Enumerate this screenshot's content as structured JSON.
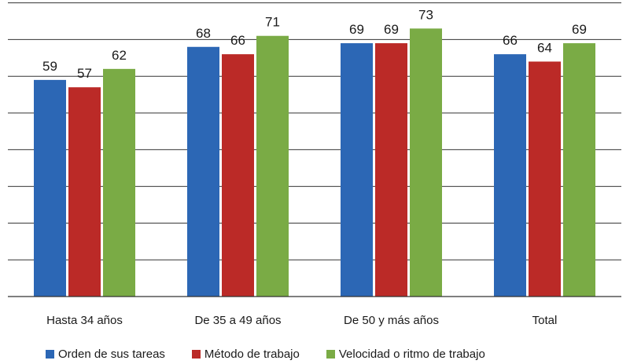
{
  "chart_data": {
    "type": "bar",
    "title": "",
    "xlabel": "",
    "ylabel": "",
    "categories": [
      "Hasta 34 años",
      "De 35 a 49 años",
      "De 50 y más años",
      "Total"
    ],
    "series": [
      {
        "name": "Orden de sus tareas",
        "values": [
          59,
          68,
          69,
          66
        ],
        "color": "#2c67b5"
      },
      {
        "name": "Método de trabajo",
        "values": [
          57,
          66,
          69,
          64
        ],
        "color": "#bb2a27"
      },
      {
        "name": "Velocidad o ritmo de trabajo",
        "values": [
          62,
          71,
          73,
          69
        ],
        "color": "#7aab45"
      }
    ],
    "ylim": [
      0,
      80
    ],
    "grid": true,
    "legend_position": "bottom"
  }
}
